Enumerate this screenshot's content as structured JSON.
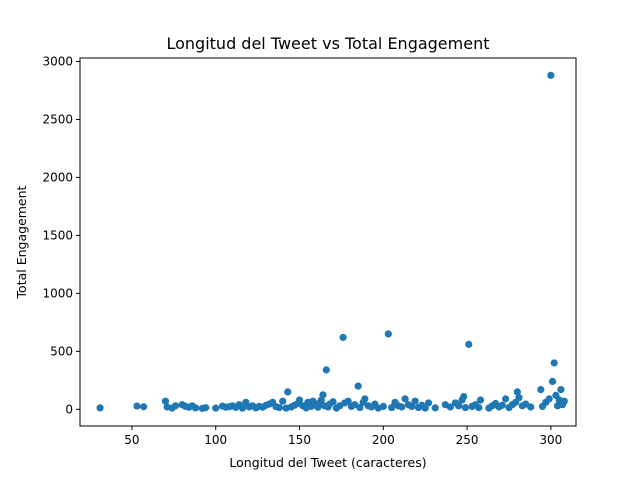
{
  "chart_data": {
    "type": "scatter",
    "title": "Longitud del Tweet vs Total Engagement",
    "xlabel": "Longitud del Tweet (caracteres)",
    "ylabel": "Total Engagement",
    "xlim": [
      19,
      315
    ],
    "ylim": [
      -144,
      3030
    ],
    "x_ticks": [
      50,
      100,
      150,
      200,
      250,
      300
    ],
    "y_ticks": [
      0,
      500,
      1000,
      1500,
      2000,
      2500,
      3000
    ],
    "marker_color": "#1f77b4",
    "grid": false,
    "legend": "none",
    "points": [
      [
        31,
        12
      ],
      [
        53,
        28
      ],
      [
        57,
        22
      ],
      [
        70,
        70
      ],
      [
        71,
        20
      ],
      [
        74,
        10
      ],
      [
        76,
        30
      ],
      [
        80,
        40
      ],
      [
        82,
        25
      ],
      [
        84,
        18
      ],
      [
        86,
        30
      ],
      [
        88,
        12
      ],
      [
        92,
        8
      ],
      [
        94,
        14
      ],
      [
        100,
        10
      ],
      [
        104,
        28
      ],
      [
        106,
        18
      ],
      [
        108,
        22
      ],
      [
        110,
        30
      ],
      [
        112,
        16
      ],
      [
        114,
        40
      ],
      [
        116,
        10
      ],
      [
        118,
        60
      ],
      [
        120,
        20
      ],
      [
        122,
        30
      ],
      [
        124,
        12
      ],
      [
        126,
        25
      ],
      [
        128,
        18
      ],
      [
        130,
        35
      ],
      [
        132,
        45
      ],
      [
        134,
        60
      ],
      [
        136,
        22
      ],
      [
        138,
        15
      ],
      [
        140,
        70
      ],
      [
        142,
        10
      ],
      [
        143,
        150
      ],
      [
        145,
        20
      ],
      [
        147,
        35
      ],
      [
        149,
        50
      ],
      [
        150,
        80
      ],
      [
        152,
        30
      ],
      [
        154,
        12
      ],
      [
        155,
        60
      ],
      [
        157,
        25
      ],
      [
        158,
        70
      ],
      [
        160,
        40
      ],
      [
        161,
        18
      ],
      [
        162,
        55
      ],
      [
        163,
        80
      ],
      [
        164,
        125
      ],
      [
        165,
        30
      ],
      [
        166,
        340
      ],
      [
        167,
        20
      ],
      [
        168,
        45
      ],
      [
        170,
        65
      ],
      [
        172,
        10
      ],
      [
        174,
        30
      ],
      [
        176,
        620
      ],
      [
        177,
        55
      ],
      [
        179,
        70
      ],
      [
        181,
        25
      ],
      [
        183,
        40
      ],
      [
        185,
        200
      ],
      [
        186,
        15
      ],
      [
        188,
        60
      ],
      [
        189,
        90
      ],
      [
        191,
        30
      ],
      [
        193,
        20
      ],
      [
        195,
        45
      ],
      [
        197,
        10
      ],
      [
        200,
        25
      ],
      [
        203,
        650
      ],
      [
        205,
        15
      ],
      [
        207,
        60
      ],
      [
        209,
        30
      ],
      [
        211,
        20
      ],
      [
        213,
        90
      ],
      [
        215,
        40
      ],
      [
        217,
        25
      ],
      [
        219,
        70
      ],
      [
        221,
        15
      ],
      [
        223,
        35
      ],
      [
        225,
        10
      ],
      [
        227,
        55
      ],
      [
        231,
        12
      ],
      [
        237,
        40
      ],
      [
        240,
        20
      ],
      [
        243,
        55
      ],
      [
        245,
        30
      ],
      [
        247,
        80
      ],
      [
        248,
        110
      ],
      [
        249,
        15
      ],
      [
        251,
        560
      ],
      [
        253,
        25
      ],
      [
        255,
        40
      ],
      [
        257,
        15
      ],
      [
        258,
        80
      ],
      [
        263,
        10
      ],
      [
        265,
        30
      ],
      [
        267,
        50
      ],
      [
        269,
        20
      ],
      [
        271,
        35
      ],
      [
        273,
        90
      ],
      [
        275,
        15
      ],
      [
        277,
        40
      ],
      [
        279,
        60
      ],
      [
        280,
        150
      ],
      [
        281,
        100
      ],
      [
        283,
        30
      ],
      [
        285,
        45
      ],
      [
        288,
        20
      ],
      [
        294,
        170
      ],
      [
        295,
        25
      ],
      [
        297,
        60
      ],
      [
        299,
        90
      ],
      [
        300,
        2880
      ],
      [
        301,
        240
      ],
      [
        302,
        400
      ],
      [
        303,
        120
      ],
      [
        304,
        30
      ],
      [
        305,
        80
      ],
      [
        306,
        170
      ],
      [
        307,
        40
      ],
      [
        308,
        70
      ]
    ]
  }
}
